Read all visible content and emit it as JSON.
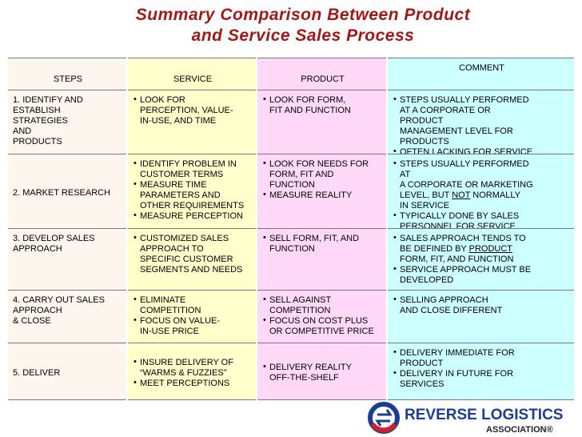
{
  "title": [
    "Summary Comparison Between Product",
    "and Service Sales Process"
  ],
  "table": {
    "headers": [
      "STEPS",
      "SERVICE",
      "PRODUCT",
      "COMMENT"
    ],
    "rows": [
      {
        "step": "1. IDENTIFY AND\n   ESTABLISH\n   STRATEGIES\nAND\n   PRODUCTS",
        "service": [
          "LOOK FOR\nPERCEPTION, VALUE-\nIN-USE, AND TIME"
        ],
        "product": [
          "LOOK FOR FORM,\nFIT AND FUNCTION"
        ],
        "comment": [
          "STEPS USUALLY PERFORMED\nAT A CORPORATE OR\nPRODUCT\nMANAGEMENT LEVEL FOR\nPRODUCTS",
          "OFTEN LACKING FOR SERVICE"
        ]
      },
      {
        "step": "2.  MARKET RESEARCH",
        "service": [
          "IDENTIFY PROBLEM IN\nCUSTOMER TERMS",
          "MEASURE TIME\nPARAMETERS AND\nOTHER REQUIREMENTS",
          "MEASURE PERCEPTION"
        ],
        "product": [
          "LOOK FOR NEEDS FOR\nFORM, FIT AND\nFUNCTION",
          "MEASURE REALITY"
        ],
        "comment": [
          [
            "STEPS USUALLY PERFORMED\nAT\nA CORPORATE OR MARKETING\nLEVEL, BUT ",
            {
              "text": "NOT",
              "underline": true
            },
            " NORMALLY\nIN SERVICE"
          ],
          "TYPICALLY DONE BY SALES\nPERSONNEL FOR SERVICE"
        ]
      },
      {
        "step": "3.  DEVELOP SALES\n    APPROACH",
        "service": [
          "CUSTOMIZED SALES\nAPPROACH TO\nSPECIFIC CUSTOMER\nSEGMENTS AND NEEDS"
        ],
        "product": [
          "SELL FORM, FIT, AND\nFUNCTION"
        ],
        "comment": [
          [
            "SALES APPROACH TENDS TO\nBE DEFINED BY ",
            {
              "text": "PRODUCT",
              "underline": true
            },
            "\nFORM, FIT, AND FUNCTION"
          ],
          "SERVICE APPROACH MUST BE\nDEVELOPED"
        ]
      },
      {
        "step": "4.  CARRY OUT SALES\n    APPROACH\n    & CLOSE",
        "service": [
          "ELIMINATE\nCOMPETITION",
          "FOCUS ON VALUE-\nIN-USE PRICE"
        ],
        "product": [
          "SELL AGAINST\nCOMPETITION",
          "FOCUS ON COST PLUS\nOR COMPETITIVE PRICE"
        ],
        "comment": [
          "SELLING APPROACH\nAND CLOSE DIFFERENT"
        ]
      },
      {
        "step": "5.  DELIVER",
        "service": [
          "INSURE DELIVERY OF\n“WARMS & FUZZIES”",
          "MEET PERCEPTIONS"
        ],
        "product": [
          "DELIVERY REALITY\nOFF-THE-SHELF"
        ],
        "comment": [
          "DELIVERY IMMEDIATE FOR\nPRODUCT",
          "DELIVERY IN FUTURE FOR\nSERVICES"
        ]
      }
    ]
  },
  "logo": {
    "name": "REVERSE LOGISTICS",
    "sub": "ASSOCIATION®"
  }
}
